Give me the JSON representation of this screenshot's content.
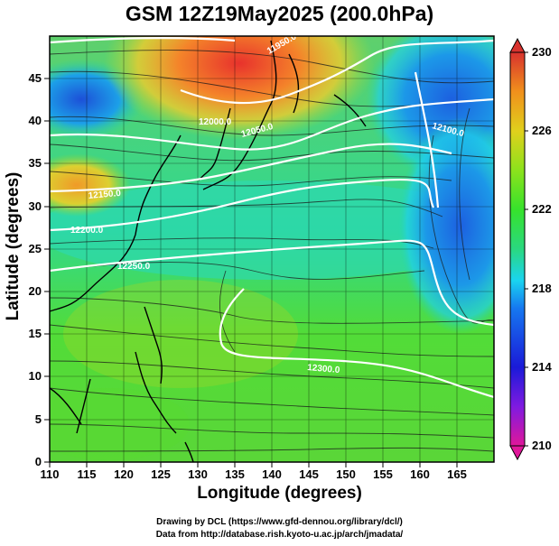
{
  "title": "GSM 12Z19May2025 (200.0hPa)",
  "xlabel": "Longitude (degrees)",
  "ylabel": "Latitude (degrees)",
  "credits": [
    "Drawing by DCL (https://www.gfd-dennou.org/library/dcl/)",
    "Data from http://database.rish.kyoto-u.ac.jp/arch/jmadata/"
  ],
  "map": {
    "lon_range": [
      110,
      170
    ],
    "lat_range": [
      0,
      50
    ],
    "lon_ticks": [
      110,
      115,
      120,
      125,
      130,
      135,
      140,
      145,
      150,
      155,
      160,
      165
    ],
    "lat_ticks": [
      0,
      5,
      10,
      15,
      20,
      25,
      30,
      35,
      40,
      45
    ],
    "colorbar_ticks": [
      210,
      214,
      218,
      222,
      226,
      230
    ],
    "colorbar_range": [
      210,
      230
    ],
    "contour_labels": [
      "11950.0",
      "12000.0",
      "12050.0",
      "12100.0",
      "12150.0",
      "12200.0",
      "12250.0",
      "12300.0"
    ]
  },
  "colors": {
    "frame": "#000000",
    "contour": "#ffffff",
    "colorscale": [
      "#e0179a",
      "#7f1ae0",
      "#1a1ad8",
      "#1678f0",
      "#1ad4f0",
      "#2ad880",
      "#36e22c",
      "#8ce21c",
      "#e0d01c",
      "#f0901c",
      "#ef4a2a",
      "#d8322e"
    ]
  }
}
